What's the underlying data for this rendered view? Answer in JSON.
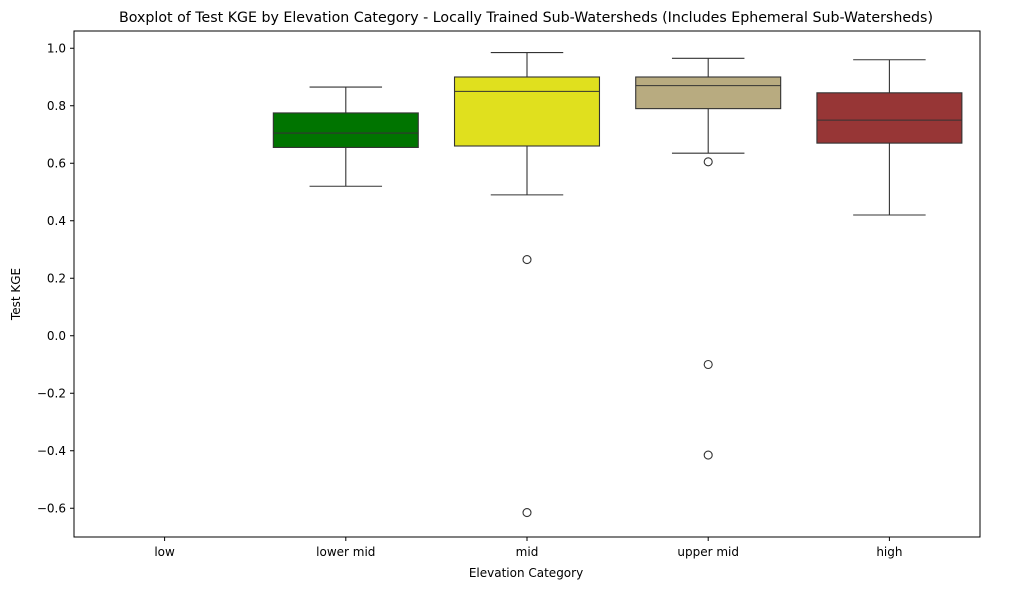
{
  "chart_data": {
    "type": "boxplot",
    "title": "Boxplot of Test KGE by Elevation Category - Locally Trained Sub-Watersheds (Includes Ephemeral Sub-Watersheds)",
    "xlabel": "Elevation Category",
    "ylabel": "Test KGE",
    "ylim": [
      -0.7,
      1.06
    ],
    "yticks": [
      1.0,
      0.8,
      0.6,
      0.4,
      0.2,
      0.0,
      -0.2,
      -0.4,
      -0.6
    ],
    "ytick_labels": [
      "1.0",
      "0.8",
      "0.6",
      "0.4",
      "0.2",
      "0.0",
      "−0.2",
      "−0.4",
      "−0.6"
    ],
    "grid": false,
    "categories": [
      "low",
      "lower mid",
      "mid",
      "upper mid",
      "high"
    ],
    "boxes": [
      {
        "category": "low",
        "empty": true
      },
      {
        "category": "lower mid",
        "color": "#007400",
        "whislo": 0.52,
        "q1": 0.655,
        "med": 0.705,
        "q3": 0.775,
        "whishi": 0.865,
        "fliers": []
      },
      {
        "category": "mid",
        "color": "#e0e01e",
        "whislo": 0.49,
        "q1": 0.66,
        "med": 0.85,
        "q3": 0.9,
        "whishi": 0.985,
        "fliers": [
          0.265,
          -0.615
        ]
      },
      {
        "category": "upper mid",
        "color": "#b8ab80",
        "whislo": 0.635,
        "q1": 0.79,
        "med": 0.87,
        "q3": 0.9,
        "whishi": 0.965,
        "fliers": [
          0.605,
          -0.1,
          -0.415
        ]
      },
      {
        "category": "high",
        "color": "#973636",
        "whislo": 0.42,
        "q1": 0.67,
        "med": 0.75,
        "q3": 0.845,
        "whishi": 0.96,
        "fliers": []
      }
    ]
  }
}
